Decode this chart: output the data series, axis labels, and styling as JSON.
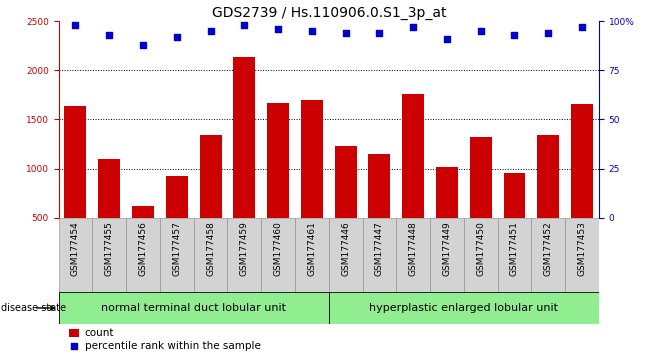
{
  "title": "GDS2739 / Hs.110906.0.S1_3p_at",
  "samples": [
    "GSM177454",
    "GSM177455",
    "GSM177456",
    "GSM177457",
    "GSM177458",
    "GSM177459",
    "GSM177460",
    "GSM177461",
    "GSM177446",
    "GSM177447",
    "GSM177448",
    "GSM177449",
    "GSM177450",
    "GSM177451",
    "GSM177452",
    "GSM177453"
  ],
  "counts": [
    1635,
    1100,
    615,
    920,
    1340,
    2140,
    1670,
    1700,
    1230,
    1150,
    1760,
    1020,
    1320,
    960,
    1340,
    1660
  ],
  "percentiles": [
    98,
    93,
    88,
    92,
    95,
    98,
    96,
    95,
    94,
    94,
    97,
    91,
    95,
    93,
    94,
    97
  ],
  "bar_color": "#cc0000",
  "dot_color": "#0000cc",
  "ylim_left": [
    500,
    2500
  ],
  "ylim_right": [
    0,
    100
  ],
  "yticks_left": [
    500,
    1000,
    1500,
    2000,
    2500
  ],
  "yticks_right": [
    0,
    25,
    50,
    75,
    100
  ],
  "grid_values": [
    1000,
    1500,
    2000
  ],
  "group1_label": "normal terminal duct lobular unit",
  "group1_count": 8,
  "group2_label": "hyperplastic enlarged lobular unit",
  "group2_count": 8,
  "disease_state_label": "disease state",
  "legend_count_label": "count",
  "legend_pct_label": "percentile rank within the sample",
  "title_fontsize": 10,
  "tick_fontsize": 6.5,
  "group_fontsize": 8,
  "group_bg": "#90ee90",
  "sample_bg": "#d3d3d3",
  "right_axis_color": "#0000cc",
  "left_axis_color": "#cc0000"
}
